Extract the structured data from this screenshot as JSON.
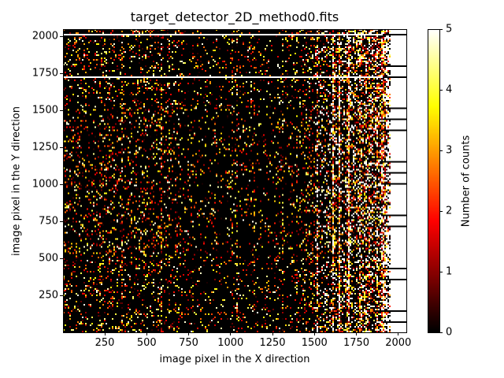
{
  "chart_data": {
    "type": "heatmap",
    "title": "target_detector_2D_method0.fits",
    "xlabel": "image pixel in the X direction",
    "ylabel": "image pixel in the Y direction",
    "xlim": [
      1,
      2048
    ],
    "ylim": [
      1,
      2048
    ],
    "xticks": [
      250,
      500,
      750,
      1000,
      1250,
      1500,
      1750,
      2000
    ],
    "yticks": [
      250,
      500,
      750,
      1000,
      1250,
      1500,
      1750,
      2000
    ],
    "colormap": "hot",
    "colorbar": {
      "label": "Number of counts",
      "range": [
        0,
        5
      ],
      "ticks": [
        0,
        1,
        2,
        3,
        4,
        5
      ]
    },
    "description_of_pattern": "sparse counts, higher density toward x 1500-1950, near-saturated x>1950 with periodic dark rows"
  }
}
